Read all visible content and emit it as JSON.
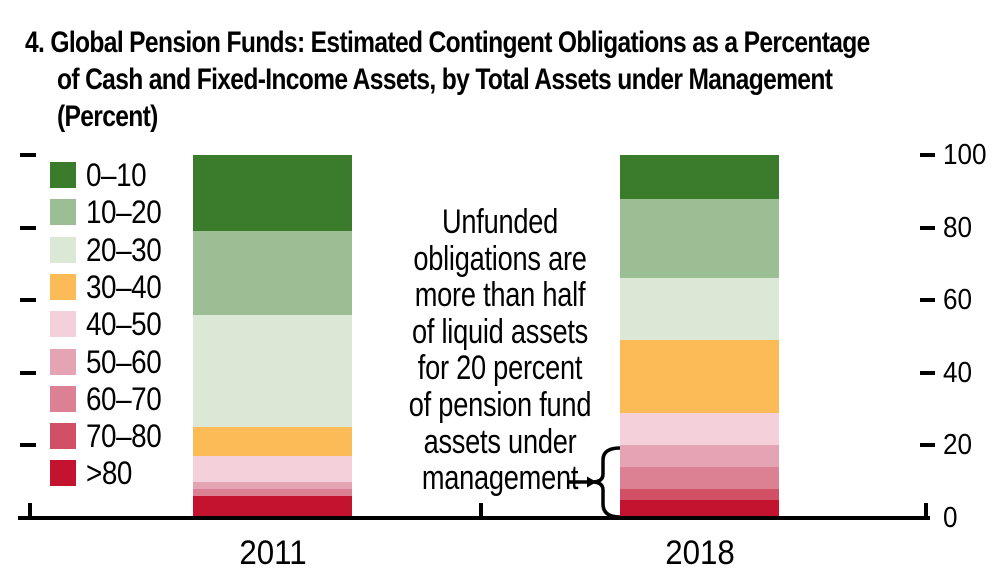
{
  "figure": {
    "number": "4.",
    "title_lines": [
      "Global Pension Funds: Estimated Contingent Obligations as a Percentage",
      "of Cash and Fixed-Income Assets, by Total Assets under Management",
      "(Percent)"
    ]
  },
  "annotation": {
    "text": "Unfunded obligations are more than half of liquid assets for 20 percent of pension fund assets under management",
    "lines": [
      "Unfunded",
      "obligations are",
      "more than half",
      "of liquid assets",
      "for 20 percent",
      "of pension fund",
      "assets under",
      "management"
    ]
  },
  "chart_data": {
    "type": "bar",
    "stacked": true,
    "title": "4. Global Pension Funds: Estimated Contingent Obligations as a Percentage of Cash and Fixed-Income Assets, by Total Assets under Management (Percent)",
    "categories": [
      "2011",
      "2018"
    ],
    "series": [
      {
        "name": "0–10",
        "color": "#3a7c2b",
        "values": [
          21,
          12
        ]
      },
      {
        "name": "10–20",
        "color": "#9bbe94",
        "values": [
          23,
          22
        ]
      },
      {
        "name": "20–30",
        "color": "#dce8d6",
        "values": [
          31,
          17
        ]
      },
      {
        "name": "30–40",
        "color": "#fbbc58",
        "values": [
          8,
          20
        ]
      },
      {
        "name": "40–50",
        "color": "#f4d1da",
        "values": [
          7,
          9
        ]
      },
      {
        "name": "50–60",
        "color": "#e5a4b3",
        "values": [
          2,
          6
        ]
      },
      {
        "name": "60–70",
        "color": "#dc8093",
        "values": [
          2,
          6
        ]
      },
      {
        "name": "70–80",
        "color": "#d15065",
        "values": [
          0,
          3
        ]
      },
      {
        "name": ">80",
        "color": "#c3132f",
        "values": [
          6,
          5
        ]
      }
    ],
    "ylim": [
      0,
      100
    ],
    "y_ticks_right": [
      0,
      20,
      40,
      60,
      80,
      100
    ],
    "y_ticks_left_unlabeled": [
      20,
      40,
      60,
      80,
      100
    ],
    "legend_position": "left",
    "grid": false,
    "annotation_brace": {
      "category": "2018",
      "covers_percent_from": 0,
      "covers_percent_to": 20
    }
  }
}
